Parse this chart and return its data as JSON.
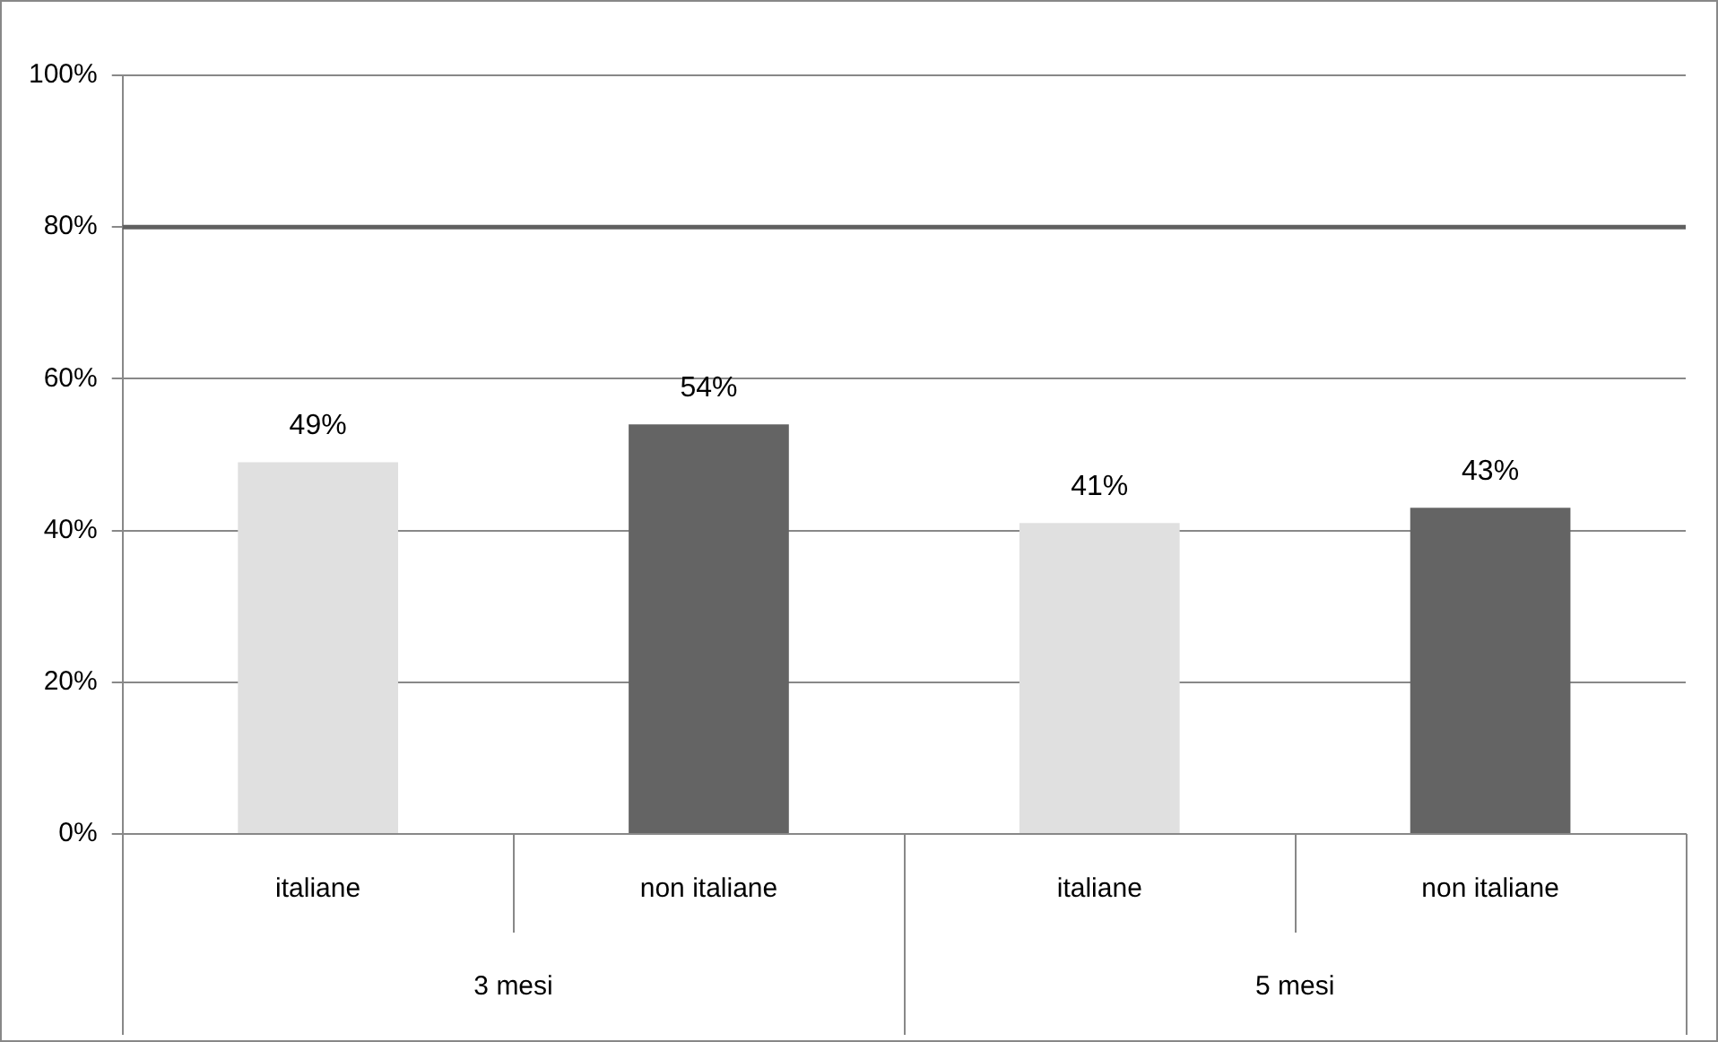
{
  "chart_data": {
    "type": "bar",
    "categories": [
      "italiane",
      "non italiane",
      "italiane",
      "non italiane"
    ],
    "values": [
      49,
      54,
      41,
      43
    ],
    "colors": [
      "#e0e0e0",
      "#646464",
      "#e0e0e0",
      "#646464"
    ],
    "value_labels": [
      "49%",
      "54%",
      "41%",
      "43%"
    ],
    "ylim": [
      0,
      100
    ],
    "yticks": [
      {
        "value": 0,
        "label": "0%"
      },
      {
        "value": 20,
        "label": "20%"
      },
      {
        "value": 40,
        "label": "40%"
      },
      {
        "value": 60,
        "label": "60%"
      },
      {
        "value": 80,
        "label": "80%"
      },
      {
        "value": 100,
        "label": "100%"
      }
    ],
    "grid": "y",
    "ref_lines": [
      {
        "axis": "y",
        "value": 80,
        "color": "#606060"
      }
    ],
    "annotations": [
      "3 mesi",
      "5 mesi"
    ]
  }
}
